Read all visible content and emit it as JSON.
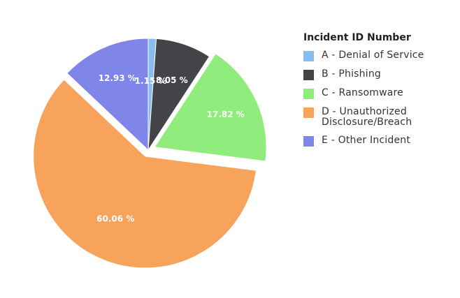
{
  "chart_data": {
    "type": "pie",
    "legend_title": "Incident ID Number",
    "legend_position": "right",
    "slices": [
      {
        "label": "A - Denial of Service",
        "value": 1.15,
        "value_label": "1.15 %",
        "color": "#87bdf1",
        "exploded": false
      },
      {
        "label": "B - Phishing",
        "value": 8.05,
        "value_label": "8.05 %",
        "color": "#434348",
        "exploded": false
      },
      {
        "label": "C - Ransomware",
        "value": 17.82,
        "value_label": "17.82 %",
        "color": "#90ed7d",
        "exploded": true
      },
      {
        "label": "D - Unauthorized Disclosure/Breach",
        "value": 60.06,
        "value_label": "60.06 %",
        "color": "#f7a35c",
        "exploded": true
      },
      {
        "label": "E - Other Incident",
        "value": 12.93,
        "value_label": "12.93 %",
        "color": "#8085e9",
        "exploded": false
      }
    ]
  }
}
